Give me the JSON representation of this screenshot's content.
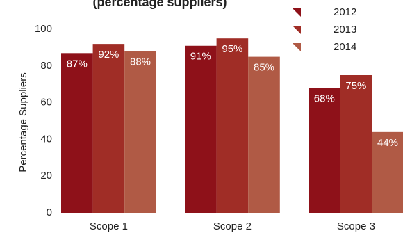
{
  "chart_data": {
    "type": "bar",
    "title": "(percentage suppliers)",
    "y_label": "Percentage Suppliers",
    "categories": [
      "Scope 1",
      "Scope 2",
      "Scope 3"
    ],
    "series": [
      {
        "name": "2012",
        "color": "#8e1119",
        "values": [
          87,
          91,
          68
        ],
        "value_labels": [
          "87%",
          "91%",
          "68%"
        ]
      },
      {
        "name": "2013",
        "color": "#a02d26",
        "values": [
          92,
          95,
          75
        ],
        "value_labels": [
          "92%",
          "95%",
          "75%"
        ]
      },
      {
        "name": "2014",
        "color": "#b05a45",
        "values": [
          88,
          85,
          44
        ],
        "value_labels": [
          "88%",
          "85%",
          "44%"
        ]
      }
    ],
    "ylim": [
      0,
      100
    ],
    "yticks": [
      0,
      20,
      40,
      60,
      80,
      100
    ],
    "grid": false,
    "legend": "top-right"
  }
}
